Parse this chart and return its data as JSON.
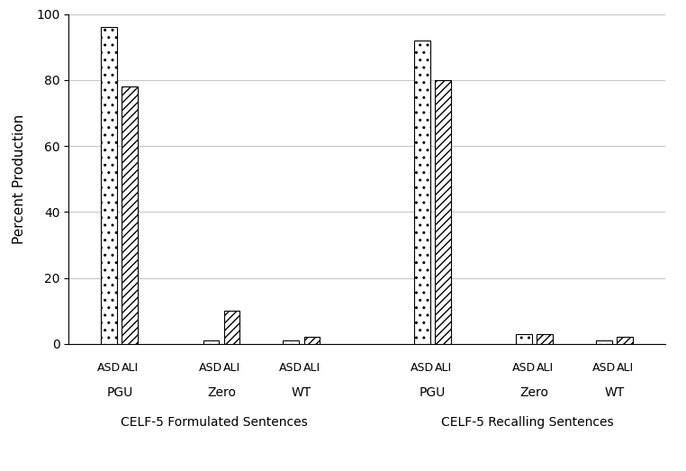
{
  "title": "",
  "ylabel": "Percent Production",
  "ylim": [
    0,
    100
  ],
  "yticks": [
    0,
    20,
    40,
    60,
    80,
    100
  ],
  "groups": [
    {
      "section": "CELF-5 Formulated Sentences",
      "label": "PGU",
      "asd": 96,
      "ali": 78
    },
    {
      "section": "CELF-5 Formulated Sentences",
      "label": "Zero",
      "asd": 1,
      "ali": 10
    },
    {
      "section": "CELF-5 Formulated Sentences",
      "label": "WT",
      "asd": 1,
      "ali": 2
    },
    {
      "section": "CELF-5 Recalling Sentences",
      "label": "PGU",
      "asd": 92,
      "ali": 80
    },
    {
      "section": "CELF-5 Recalling Sentences",
      "label": "Zero",
      "asd": 3,
      "ali": 3
    },
    {
      "section": "CELF-5 Recalling Sentences",
      "label": "WT",
      "asd": 1,
      "ali": 2
    }
  ],
  "section_labels": [
    "CELF-5 Formulated Sentences",
    "CELF-5 Recalling Sentences"
  ],
  "bar_width": 0.22,
  "asd_hatch": "..",
  "ali_hatch": "////",
  "bar_color": "white",
  "bar_edgecolor": "black",
  "grid_color": "#c8c8c8",
  "fontsize_axis_label": 11,
  "fontsize_tick": 10,
  "fontsize_sublabel": 9,
  "fontsize_grouplabel": 10,
  "fontsize_section": 10,
  "section1_centers": [
    0.7,
    2.1,
    3.2
  ],
  "section2_centers": [
    5.0,
    6.4,
    7.5
  ],
  "xlim": [
    0.0,
    8.2
  ]
}
